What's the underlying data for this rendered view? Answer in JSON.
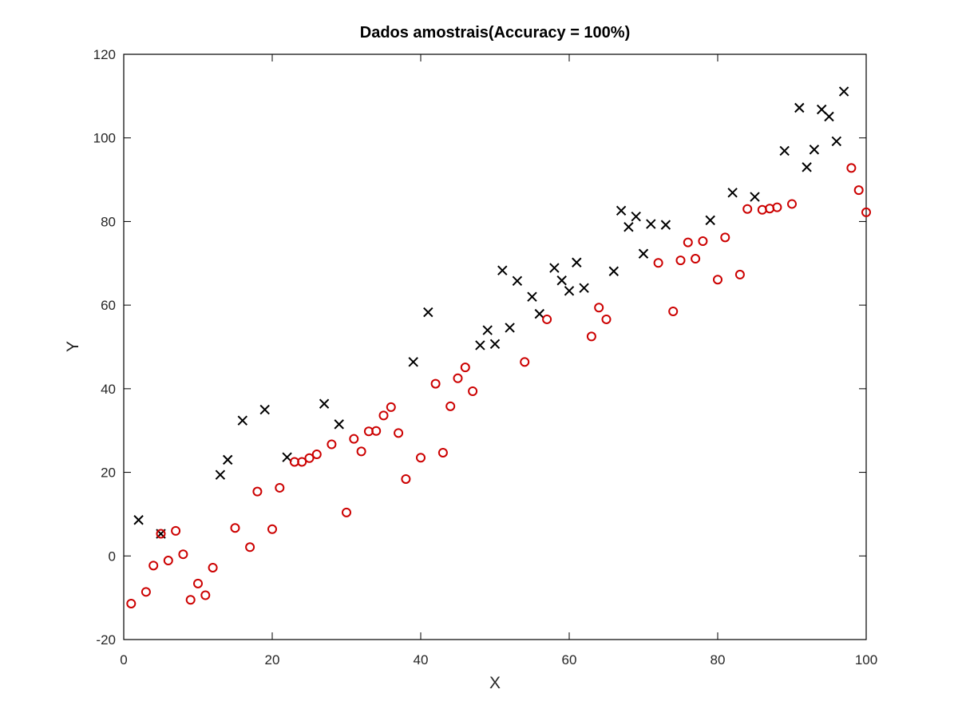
{
  "chart_data": {
    "type": "scatter",
    "title": "Dados amostrais(Accuracy = 100%)",
    "xlabel": "X",
    "ylabel": "Y",
    "xlim": [
      0,
      100
    ],
    "ylim": [
      -20,
      120
    ],
    "xticks": [
      0,
      20,
      40,
      60,
      80,
      100
    ],
    "yticks": [
      -20,
      0,
      20,
      40,
      60,
      80,
      100,
      120
    ],
    "grid": false,
    "series": [
      {
        "marker": "x",
        "color": "#000000",
        "points": [
          [
            2,
            8.6
          ],
          [
            5,
            5.3
          ],
          [
            13,
            19.4
          ],
          [
            14,
            23
          ],
          [
            16,
            32.4
          ],
          [
            19,
            35
          ],
          [
            22,
            23.6
          ],
          [
            27,
            36.4
          ],
          [
            29,
            31.5
          ],
          [
            39,
            46.4
          ],
          [
            41,
            58.3
          ],
          [
            48,
            50.4
          ],
          [
            49,
            54
          ],
          [
            50,
            50.7
          ],
          [
            51,
            68.3
          ],
          [
            52,
            54.6
          ],
          [
            53,
            65.8
          ],
          [
            55,
            62
          ],
          [
            56,
            57.9
          ],
          [
            58,
            68.9
          ],
          [
            59,
            65.9
          ],
          [
            60,
            63.4
          ],
          [
            61,
            70.2
          ],
          [
            62,
            64.1
          ],
          [
            66,
            68.1
          ],
          [
            67,
            82.6
          ],
          [
            68,
            78.7
          ],
          [
            69,
            81.2
          ],
          [
            70,
            72.3
          ],
          [
            71,
            79.4
          ],
          [
            73,
            79.2
          ],
          [
            79,
            80.3
          ],
          [
            82,
            86.9
          ],
          [
            85,
            85.9
          ],
          [
            89,
            96.9
          ],
          [
            91,
            107.2
          ],
          [
            92,
            93
          ],
          [
            93,
            97.2
          ],
          [
            94,
            106.8
          ],
          [
            95,
            105.1
          ],
          [
            96,
            99.2
          ],
          [
            97,
            111.1
          ]
        ]
      },
      {
        "marker": "o",
        "color": "#cc0000",
        "points": [
          [
            1,
            -11.4
          ],
          [
            3,
            -8.6
          ],
          [
            4,
            -2.3
          ],
          [
            5,
            5.3
          ],
          [
            6,
            -1.1
          ],
          [
            7,
            6
          ],
          [
            8,
            0.4
          ],
          [
            9,
            -10.5
          ],
          [
            10,
            -6.6
          ],
          [
            11,
            -9.4
          ],
          [
            12,
            -2.8
          ],
          [
            15,
            6.7
          ],
          [
            17,
            2.1
          ],
          [
            18,
            15.4
          ],
          [
            20,
            6.4
          ],
          [
            21,
            16.3
          ],
          [
            23,
            22.5
          ],
          [
            24,
            22.5
          ],
          [
            25,
            23.4
          ],
          [
            26,
            24.3
          ],
          [
            28,
            26.7
          ],
          [
            30,
            10.4
          ],
          [
            31,
            28
          ],
          [
            32,
            25
          ],
          [
            33,
            29.8
          ],
          [
            34,
            29.9
          ],
          [
            35,
            33.6
          ],
          [
            36,
            35.6
          ],
          [
            37,
            29.4
          ],
          [
            38,
            18.4
          ],
          [
            40,
            23.5
          ],
          [
            42,
            41.2
          ],
          [
            43,
            24.7
          ],
          [
            44,
            35.8
          ],
          [
            45,
            42.5
          ],
          [
            46,
            45.1
          ],
          [
            47,
            39.4
          ],
          [
            54,
            46.4
          ],
          [
            57,
            56.6
          ],
          [
            63,
            52.5
          ],
          [
            64,
            59.4
          ],
          [
            65,
            56.6
          ],
          [
            72,
            70.1
          ],
          [
            74,
            58.5
          ],
          [
            75,
            70.7
          ],
          [
            76,
            75
          ],
          [
            77,
            71.1
          ],
          [
            78,
            75.3
          ],
          [
            80,
            66.1
          ],
          [
            81,
            76.2
          ],
          [
            83,
            67.3
          ],
          [
            84,
            83
          ],
          [
            86,
            82.8
          ],
          [
            87,
            83.1
          ],
          [
            88,
            83.4
          ],
          [
            90,
            84.2
          ],
          [
            98,
            92.8
          ],
          [
            99,
            87.5
          ],
          [
            100,
            82.2
          ]
        ]
      }
    ]
  }
}
